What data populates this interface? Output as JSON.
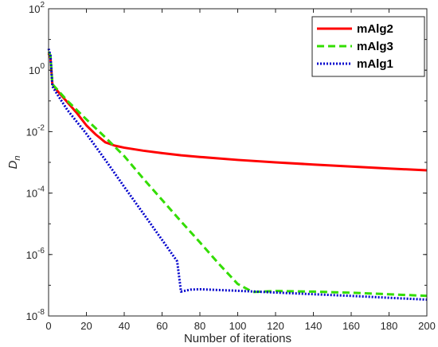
{
  "chart_data": {
    "type": "line",
    "xlabel": "Number of iterations",
    "ylabel": "D",
    "ylabel_sub": "n",
    "xlim": [
      0,
      200
    ],
    "ylim": [
      1e-08,
      100
    ],
    "yscale": "log",
    "grid": false,
    "legend_position": "top-right",
    "x_ticks": [
      {
        "value": 0,
        "label": "0"
      },
      {
        "value": 20,
        "label": "20"
      },
      {
        "value": 40,
        "label": "40"
      },
      {
        "value": 60,
        "label": "60"
      },
      {
        "value": 80,
        "label": "80"
      },
      {
        "value": 100,
        "label": "100"
      },
      {
        "value": 120,
        "label": "120"
      },
      {
        "value": 140,
        "label": "140"
      },
      {
        "value": 160,
        "label": "160"
      },
      {
        "value": 180,
        "label": "180"
      },
      {
        "value": 200,
        "label": "200"
      }
    ],
    "y_ticks": [
      {
        "exp": 2,
        "base": "10",
        "sup": "2"
      },
      {
        "exp": 0,
        "base": "10",
        "sup": "0"
      },
      {
        "exp": -2,
        "base": "10",
        "sup": "-2"
      },
      {
        "exp": -4,
        "base": "10",
        "sup": "-4"
      },
      {
        "exp": -6,
        "base": "10",
        "sup": "-6"
      },
      {
        "exp": -8,
        "base": "10",
        "sup": "-8"
      }
    ],
    "series": [
      {
        "name": "mAlg2",
        "color": "#ff0000",
        "style": "solid",
        "points": [
          [
            0,
            3.5
          ],
          [
            1,
            2.5
          ],
          [
            2,
            0.35
          ],
          [
            5,
            0.2
          ],
          [
            10,
            0.09
          ],
          [
            15,
            0.04
          ],
          [
            20,
            0.016
          ],
          [
            25,
            0.008
          ],
          [
            30,
            0.0045
          ],
          [
            35,
            0.0035
          ],
          [
            40,
            0.003
          ],
          [
            50,
            0.0024
          ],
          [
            60,
            0.002
          ],
          [
            70,
            0.0017
          ],
          [
            80,
            0.0015
          ],
          [
            100,
            0.0012
          ],
          [
            120,
            0.001
          ],
          [
            140,
            0.00085
          ],
          [
            160,
            0.00073
          ],
          [
            180,
            0.00063
          ],
          [
            200,
            0.00055
          ]
        ]
      },
      {
        "name": "mAlg3",
        "color": "#33dd00",
        "style": "dashed",
        "points": [
          [
            0,
            4
          ],
          [
            1,
            3
          ],
          [
            2,
            0.35
          ],
          [
            5,
            0.22
          ],
          [
            10,
            0.1
          ],
          [
            20,
            0.025
          ],
          [
            30,
            0.0065
          ],
          [
            40,
            0.0016
          ],
          [
            50,
            0.0003
          ],
          [
            60,
            6e-05
          ],
          [
            70,
            1.2e-05
          ],
          [
            80,
            2.5e-06
          ],
          [
            90,
            5e-07
          ],
          [
            100,
            1.1e-07
          ],
          [
            108,
            6e-08
          ],
          [
            120,
            6.5e-08
          ],
          [
            140,
            6.2e-08
          ],
          [
            160,
            5.7e-08
          ],
          [
            180,
            5.1e-08
          ],
          [
            200,
            4.5e-08
          ]
        ]
      },
      {
        "name": "mAlg1",
        "color": "#0000cc",
        "style": "dotted",
        "points": [
          [
            0,
            5
          ],
          [
            1,
            3
          ],
          [
            2,
            0.3
          ],
          [
            5,
            0.15
          ],
          [
            10,
            0.05
          ],
          [
            20,
            0.0085
          ],
          [
            30,
            0.0012
          ],
          [
            40,
            0.00016
          ],
          [
            50,
            2.2e-05
          ],
          [
            60,
            3e-06
          ],
          [
            68,
            6e-07
          ],
          [
            70,
            6.2e-08
          ],
          [
            75,
            7.2e-08
          ],
          [
            80,
            7.4e-08
          ],
          [
            100,
            6.6e-08
          ],
          [
            120,
            5.8e-08
          ],
          [
            140,
            5.1e-08
          ],
          [
            160,
            4.5e-08
          ],
          [
            180,
            3.9e-08
          ],
          [
            200,
            3.4e-08
          ]
        ]
      }
    ]
  }
}
